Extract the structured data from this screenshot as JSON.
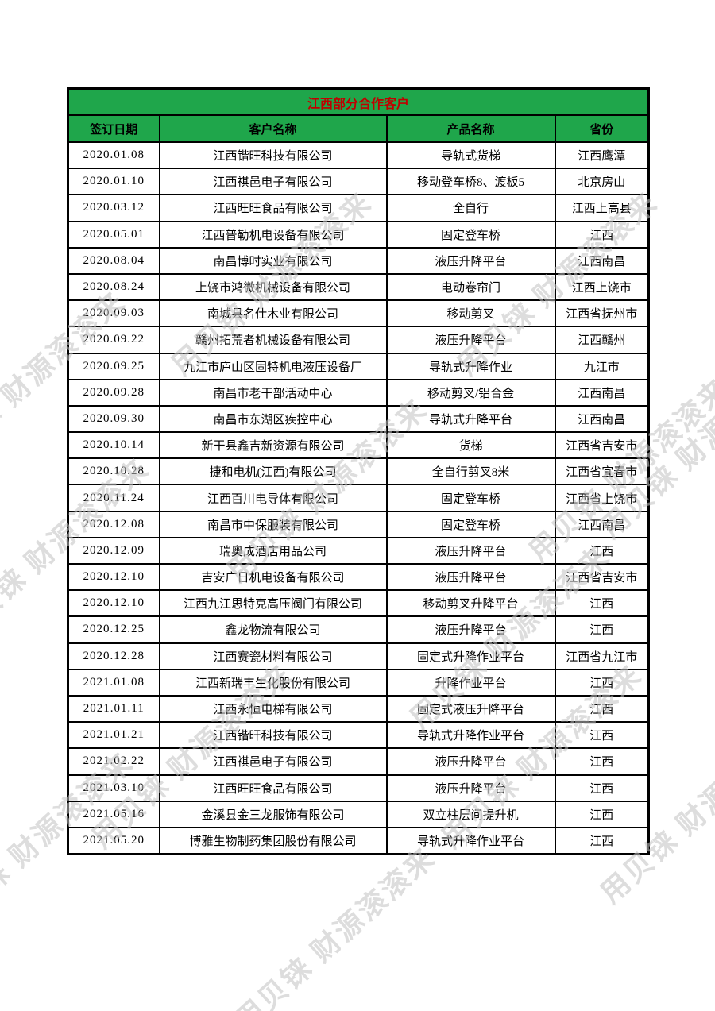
{
  "page": {
    "background": "#ffffff"
  },
  "watermark": {
    "text": "用贝铼 财源滚滚来",
    "color": "#c3c3c3"
  },
  "table": {
    "title": "江西部分合作客户",
    "title_color": "#c00000",
    "header_bg": "#1fa64b",
    "border_color": "#000000",
    "columns": [
      "签订日期",
      "客户名称",
      "产品名称",
      "省份"
    ],
    "rows": [
      {
        "date": "2020.01.08",
        "customer": "江西锴旺科技有限公司",
        "product": "导轨式货梯",
        "province": "江西鹰潭"
      },
      {
        "date": "2020.01.10",
        "customer": "江西祺邑电子有限公司",
        "product": "移动登车桥8、渡板5",
        "province": "北京房山"
      },
      {
        "date": "2020.03.12",
        "customer": "江西旺旺食品有限公司",
        "product": "全自行",
        "province": "江西上高县"
      },
      {
        "date": "2020.05.01",
        "customer": "江西普勒机电设备有限公司",
        "product": "固定登车桥",
        "province": "江西"
      },
      {
        "date": "2020.08.04",
        "customer": "南昌博时实业有限公司",
        "product": "液压升降平台",
        "province": "江西南昌"
      },
      {
        "date": "2020.08.24",
        "customer": "上饶市鸿微机械设备有限公司",
        "product": "电动卷帘门",
        "province": "江西上饶市"
      },
      {
        "date": "2020.09.03",
        "customer": "南城县名仕木业有限公司",
        "product": "移动剪叉",
        "province": "江西省抚州市"
      },
      {
        "date": "2020.09.22",
        "customer": "赣州拓荒者机械设备有限公司",
        "product": "液压升降平台",
        "province": "江西赣州"
      },
      {
        "date": "2020.09.25",
        "customer": "九江市庐山区固特机电液压设备厂",
        "product": "导轨式升降作业",
        "province": "九江市"
      },
      {
        "date": "2020.09.28",
        "customer": "南昌市老干部活动中心",
        "product": "移动剪叉/铝合金",
        "province": "江西南昌"
      },
      {
        "date": "2020.09.30",
        "customer": "南昌市东湖区疾控中心",
        "product": "导轨式升降平台",
        "province": "江西南昌"
      },
      {
        "date": "2020.10.14",
        "customer": "新干县鑫吉新资源有限公司",
        "product": "货梯",
        "province": "江西省吉安市"
      },
      {
        "date": "2020.10.28",
        "customer": "捷和电机(江西)有限公司",
        "product": "全自行剪叉8米",
        "province": "江西省宜春市"
      },
      {
        "date": "2020.11.24",
        "customer": "江西百川电导体有限公司",
        "product": "固定登车桥",
        "province": "江西省上饶市"
      },
      {
        "date": "2020.12.08",
        "customer": "南昌市中保服装有限公司",
        "product": "固定登车桥",
        "province": "江西南昌"
      },
      {
        "date": "2020.12.09",
        "customer": "瑞奥成酒店用品公司",
        "product": "液压升降平台",
        "province": "江西"
      },
      {
        "date": "2020.12.10",
        "customer": "吉安广日机电设备有限公司",
        "product": "液压升降平台",
        "province": "江西省吉安市"
      },
      {
        "date": "2020.12.10",
        "customer": "江西九江思特克高压阀门有限公司",
        "product": "移动剪叉升降平台",
        "province": "江西"
      },
      {
        "date": "2020.12.25",
        "customer": "鑫龙物流有限公司",
        "product": "液压升降平台",
        "province": "江西"
      },
      {
        "date": "2020.12.28",
        "customer": "江西赛瓷材料有限公司",
        "product": "固定式升降作业平台",
        "province": "江西省九江市"
      },
      {
        "date": "2021.01.08",
        "customer": "江西新瑞丰生化股份有限公司",
        "product": "升降作业平台",
        "province": "江西"
      },
      {
        "date": "2021.01.11",
        "customer": "江西永恒电梯有限公司",
        "product": "固定式液压升降平台",
        "province": "江西"
      },
      {
        "date": "2021.01.21",
        "customer": "江西锴旰科技有限公司",
        "product": "导轨式升降作业平台",
        "province": "江西"
      },
      {
        "date": "2021.02.22",
        "customer": "江西祺邑电子有限公司",
        "product": "液压升降平台",
        "province": "江西"
      },
      {
        "date": "2021.03.10",
        "customer": "江西旺旺食品有限公司",
        "product": "液压升降平台",
        "province": "江西"
      },
      {
        "date": "2021.05.16",
        "customer": "金溪县金三龙服饰有限公司",
        "product": "双立柱层间提升机",
        "province": "江西"
      },
      {
        "date": "2021.05.20",
        "customer": "博雅生物制药集团股份有限公司",
        "product": "导轨式升降作业平台",
        "province": "江西"
      }
    ]
  }
}
